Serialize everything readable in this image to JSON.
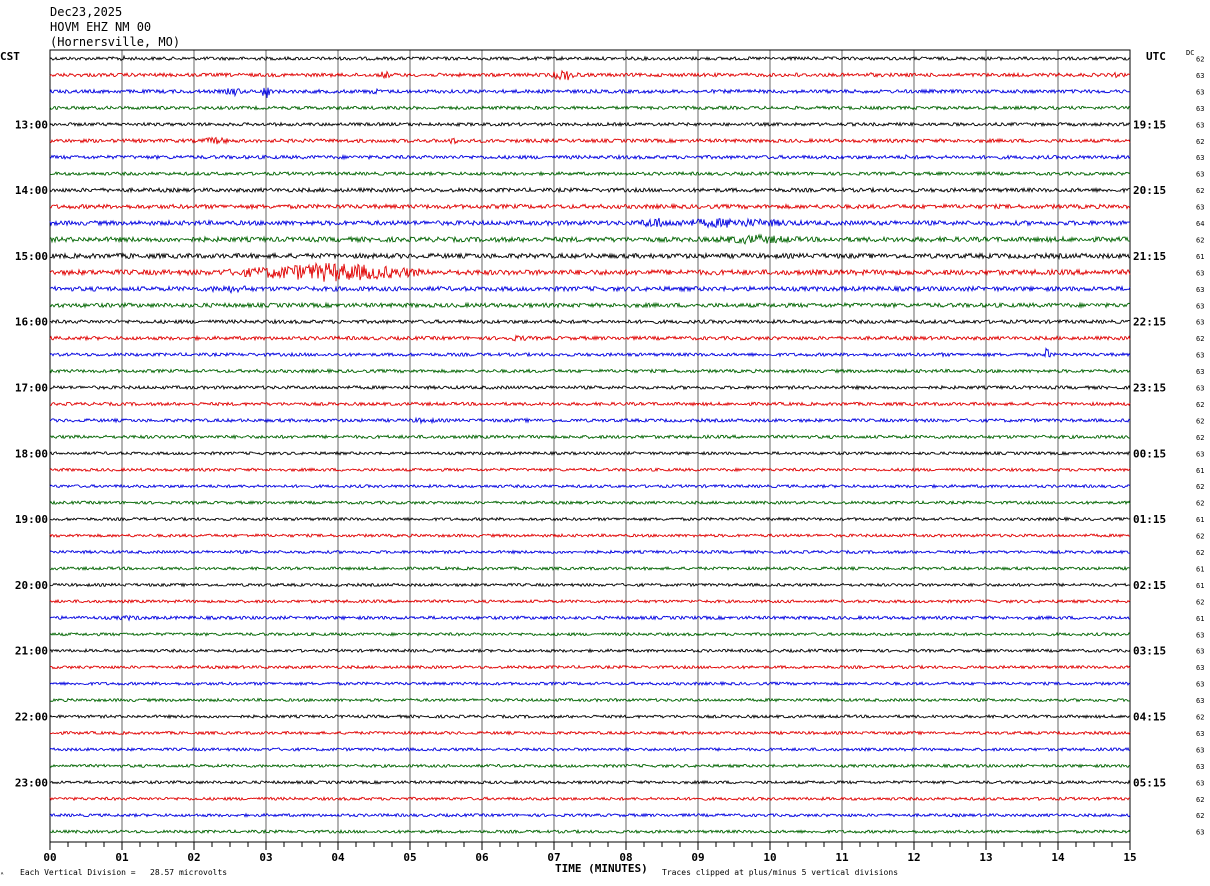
{
  "header": {
    "date": "Dec23,2025",
    "station": "HOVM EHZ NM 00",
    "location": "(Hornersville, MO)"
  },
  "left_timezone": "CST",
  "right_timezone": "UTC",
  "dc_label": "DC",
  "footer": {
    "scale_note": "Each Vertical Division =   28.57 microvolts",
    "clip_note": "Traces clipped at plus/minus 5 vertical divisions",
    "corner_mark": "ᴬ"
  },
  "chart_data": {
    "type": "line",
    "title": "",
    "xlabel": "TIME (MINUTES)",
    "ylabel": "",
    "xlim": [
      0,
      15
    ],
    "x_ticks": [
      "00",
      "01",
      "02",
      "03",
      "04",
      "05",
      "06",
      "07",
      "08",
      "09",
      "10",
      "11",
      "12",
      "13",
      "14",
      "15"
    ],
    "trace_colors": [
      "#000000",
      "#e00000",
      "#0000e0",
      "#006400"
    ],
    "left_hour_labels": [
      "13:00",
      "14:00",
      "15:00",
      "16:00",
      "17:00",
      "18:00",
      "19:00",
      "20:00",
      "21:00",
      "22:00",
      "23:00"
    ],
    "right_hour_labels": [
      "19:15",
      "20:15",
      "21:15",
      "22:15",
      "23:15",
      "00:15",
      "01:15",
      "02:15",
      "03:15",
      "04:15",
      "05:15"
    ],
    "first_hour_label_trace": 4,
    "traces_per_hour": 4,
    "trace_count": 48,
    "dc_offsets": [
      "62",
      "63",
      "63",
      "63",
      "63",
      "62",
      "63",
      "63",
      "62",
      "63",
      "64",
      "62",
      "61",
      "63",
      "63",
      "63",
      "63",
      "62",
      "63",
      "63",
      "63",
      "62",
      "62",
      "62",
      "63",
      "61",
      "62",
      "62",
      "61",
      "62",
      "62",
      "61",
      "61",
      "62",
      "61",
      "63",
      "63",
      "63",
      "63",
      "63",
      "62",
      "63",
      "63",
      "63",
      "63",
      "62",
      "62",
      "63"
    ],
    "noise_level": [
      1.0,
      1.1,
      1.1,
      1.0,
      1.0,
      1.1,
      1.1,
      1.0,
      1.2,
      1.3,
      1.4,
      1.5,
      1.5,
      1.6,
      1.4,
      1.3,
      1.1,
      1.1,
      1.0,
      1.0,
      1.0,
      1.0,
      1.0,
      1.0,
      0.9,
      0.9,
      0.9,
      0.9,
      0.9,
      0.9,
      0.9,
      0.9,
      0.9,
      0.9,
      1.0,
      0.9,
      0.9,
      0.9,
      0.9,
      0.9,
      0.9,
      0.9,
      0.9,
      0.9,
      0.9,
      0.9,
      0.9,
      0.9
    ],
    "events": [
      {
        "trace": 0,
        "minute": 1.0,
        "amplitude": 3,
        "duration_min": 0.2
      },
      {
        "trace": 0,
        "minute": 7.1,
        "amplitude": 2,
        "duration_min": 0.3
      },
      {
        "trace": 1,
        "minute": 4.65,
        "amplitude": 5,
        "duration_min": 0.15
      },
      {
        "trace": 1,
        "minute": 7.15,
        "amplitude": 6,
        "duration_min": 0.4
      },
      {
        "trace": 1,
        "minute": 10.4,
        "amplitude": 3,
        "duration_min": 0.15
      },
      {
        "trace": 1,
        "minute": 11.4,
        "amplitude": 3,
        "duration_min": 0.15
      },
      {
        "trace": 1,
        "minute": 14.8,
        "amplitude": 3,
        "duration_min": 0.1
      },
      {
        "trace": 2,
        "minute": 2.55,
        "amplitude": 5,
        "duration_min": 0.25
      },
      {
        "trace": 2,
        "minute": 3.0,
        "amplitude": 8,
        "duration_min": 0.15
      },
      {
        "trace": 2,
        "minute": 4.5,
        "amplitude": 4,
        "duration_min": 0.15
      },
      {
        "trace": 5,
        "minute": 2.3,
        "amplitude": 4,
        "duration_min": 0.5
      },
      {
        "trace": 5,
        "minute": 5.6,
        "amplitude": 4,
        "duration_min": 0.15
      },
      {
        "trace": 6,
        "minute": 11.9,
        "amplitude": 3,
        "duration_min": 0.1
      },
      {
        "trace": 10,
        "minute": 8.4,
        "amplitude": 6,
        "duration_min": 0.5
      },
      {
        "trace": 10,
        "minute": 9.4,
        "amplitude": 5,
        "duration_min": 2.5
      },
      {
        "trace": 11,
        "minute": 9.8,
        "amplitude": 5,
        "duration_min": 1.5
      },
      {
        "trace": 12,
        "minute": 1.1,
        "amplitude": 3,
        "duration_min": 0.4
      },
      {
        "trace": 13,
        "minute": 3.9,
        "amplitude": 10,
        "duration_min": 2.5
      },
      {
        "trace": 13,
        "minute": 2.8,
        "amplitude": 4,
        "duration_min": 2.0
      },
      {
        "trace": 14,
        "minute": 2.5,
        "amplitude": 4,
        "duration_min": 1.0
      },
      {
        "trace": 15,
        "minute": 2.1,
        "amplitude": 3,
        "duration_min": 0.2
      },
      {
        "trace": 17,
        "minute": 6.5,
        "amplitude": 3,
        "duration_min": 0.6
      },
      {
        "trace": 18,
        "minute": 12.4,
        "amplitude": 2,
        "duration_min": 0.5
      },
      {
        "trace": 18,
        "minute": 13.85,
        "amplitude": 8,
        "duration_min": 0.1
      },
      {
        "trace": 22,
        "minute": 5.2,
        "amplitude": 3,
        "duration_min": 0.6
      },
      {
        "trace": 22,
        "minute": 6.6,
        "amplitude": 2,
        "duration_min": 0.4
      },
      {
        "trace": 34,
        "minute": 1.1,
        "amplitude": 2.5,
        "duration_min": 0.8
      }
    ]
  }
}
